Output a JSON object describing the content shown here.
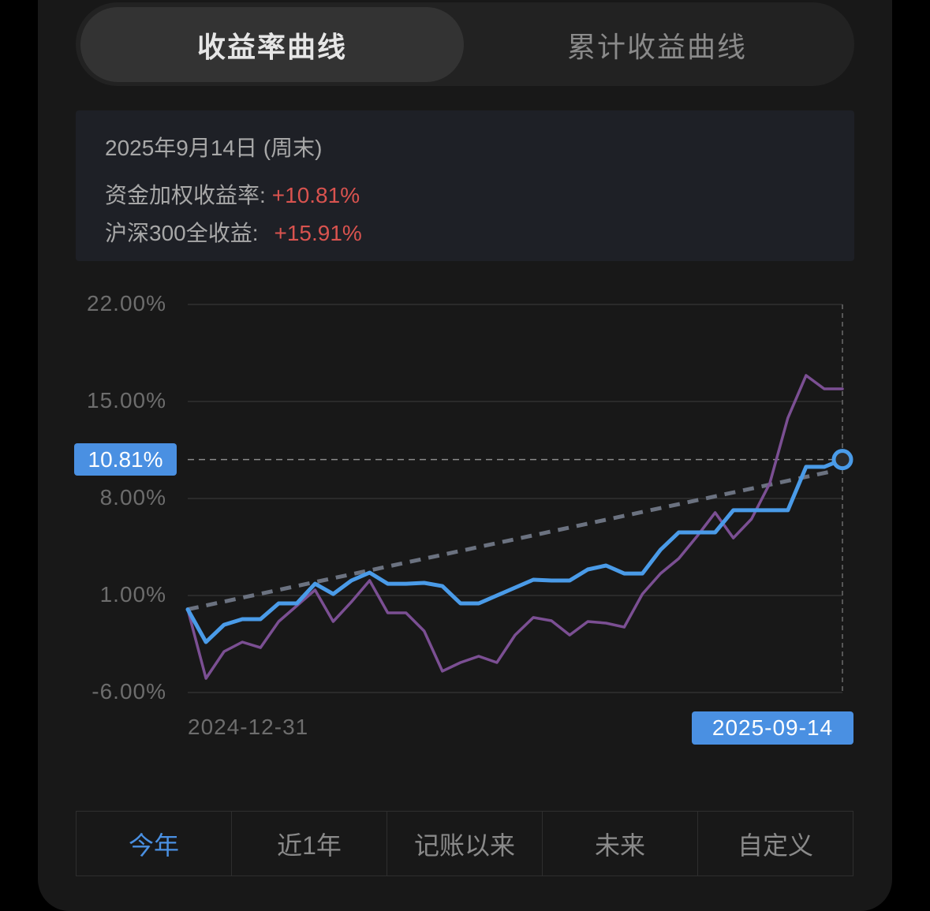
{
  "tabs": [
    {
      "label": "收益率曲线",
      "active": true
    },
    {
      "label": "累计收益曲线",
      "active": false
    }
  ],
  "info": {
    "date": "2025年9月14日 (周末)",
    "weighted_return_label": "资金加权收益率:",
    "weighted_return_value": "+10.81%",
    "benchmark_label": "沪深300全收益:",
    "benchmark_value": "+15.91%"
  },
  "colors": {
    "portfolio": "#4a9be8",
    "benchmark": "#7b4f93",
    "trend": "#6b7280",
    "positive": "#d9534f",
    "accent": "#4a90e2"
  },
  "chart_data": {
    "type": "line",
    "ylim": [
      -6,
      22
    ],
    "yticks": [
      "22.00%",
      "15.00%",
      "8.00%",
      "1.00%",
      "-6.00%"
    ],
    "ytick_values": [
      22,
      15,
      8,
      1,
      -6
    ],
    "x_start_label": "2024-12-31",
    "x_end_label": "2025-09-14",
    "grid": true,
    "crosshair_value": 10.81,
    "crosshair_label": "10.81%",
    "series": [
      {
        "key": "portfolio",
        "values": [
          0,
          -2.36,
          -1.11,
          -0.71,
          -0.71,
          0.43,
          0.43,
          1.85,
          1.11,
          2.08,
          2.65,
          1.85,
          1.85,
          1.91,
          1.68,
          0.43,
          0.43,
          1.0,
          1.57,
          2.14,
          2.08,
          2.08,
          2.88,
          3.16,
          2.59,
          2.59,
          4.3,
          5.55,
          5.55,
          5.55,
          7.15,
          7.15,
          7.15,
          7.15,
          10.28,
          10.28,
          10.81
        ]
      },
      {
        "key": "benchmark",
        "values": [
          0,
          -4.98,
          -3.04,
          -2.36,
          -2.76,
          -0.88,
          0.26,
          1.4,
          -0.88,
          0.54,
          2.08,
          -0.25,
          -0.25,
          -1.56,
          -4.46,
          -3.84,
          -3.38,
          -3.84,
          -1.85,
          -0.59,
          -0.82,
          -1.85,
          -0.88,
          -0.99,
          -1.28,
          1.11,
          2.59,
          3.67,
          5.27,
          6.98,
          5.15,
          6.52,
          9.08,
          13.81,
          16.88,
          15.91,
          15.91
        ]
      },
      {
        "key": "trend",
        "values": [
          0,
          10.0
        ],
        "style": "dashed"
      }
    ]
  },
  "ranges": [
    {
      "label": "今年",
      "active": true
    },
    {
      "label": "近1年",
      "active": false
    },
    {
      "label": "记账以来",
      "active": false
    },
    {
      "label": "未来",
      "active": false
    },
    {
      "label": "自定义",
      "active": false
    }
  ]
}
